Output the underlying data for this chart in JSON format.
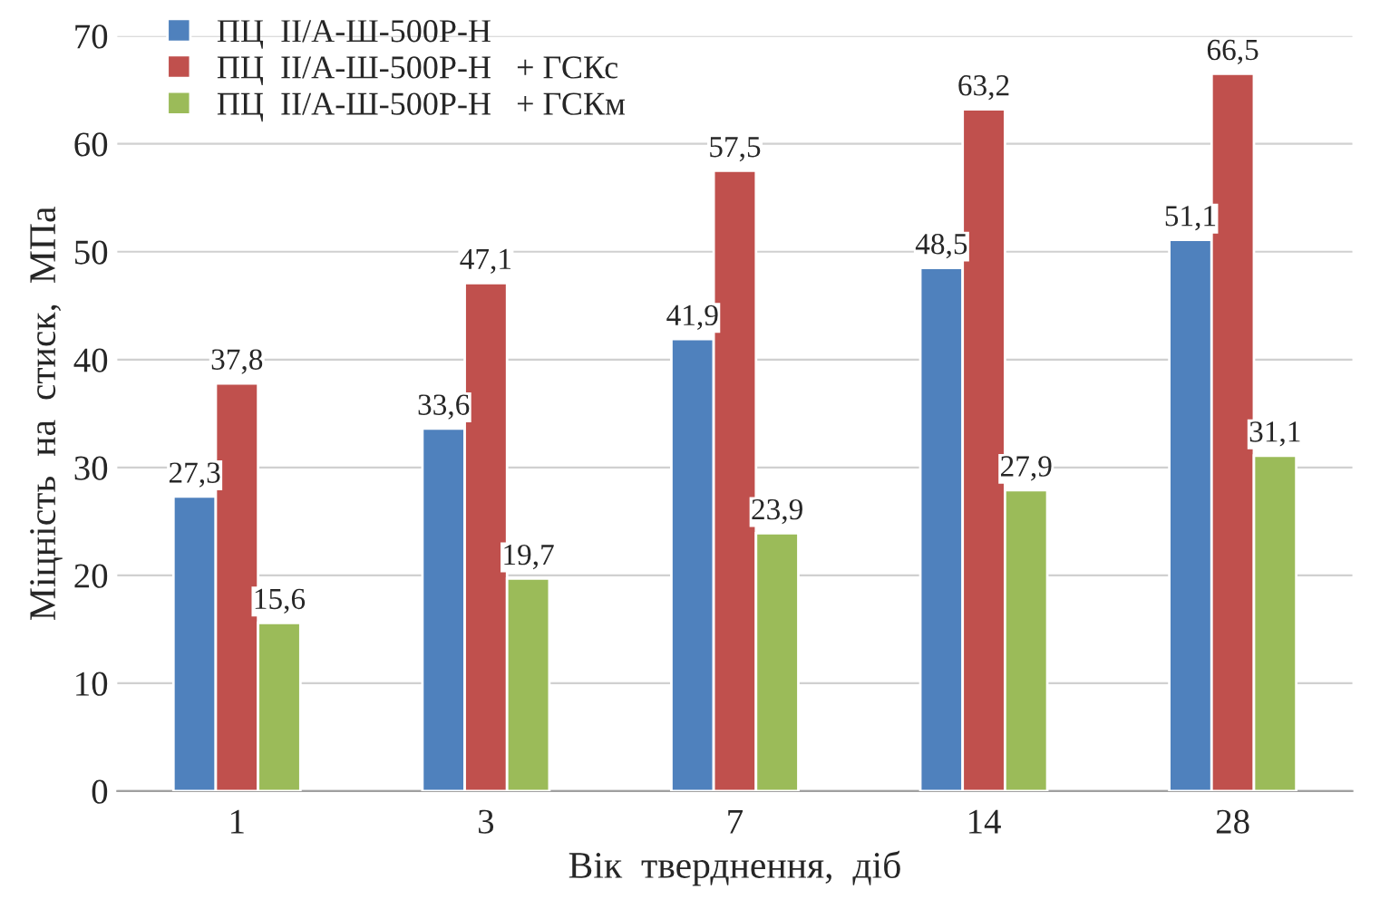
{
  "chart_data": {
    "type": "bar",
    "xlabel": "Вік  тверднення,  діб",
    "ylabel": "Міцність  на  стиск,  МПа",
    "categories": [
      "1",
      "3",
      "7",
      "14",
      "28"
    ],
    "series": [
      {
        "name": "ПЦ  II/А-Ш-500Р-Н",
        "color": "#4f81bd",
        "values": [
          27.3,
          33.6,
          41.9,
          48.5,
          51.1
        ],
        "value_labels": [
          "27,3",
          "33,6",
          "41,9",
          "48,5",
          "51,1"
        ]
      },
      {
        "name": "ПЦ  II/А-Ш-500Р-Н   + ГСКс",
        "color": "#c0504d",
        "values": [
          37.8,
          47.1,
          57.5,
          63.2,
          66.5
        ],
        "value_labels": [
          "37,8",
          "47,1",
          "57,5",
          "63,2",
          "66,5"
        ]
      },
      {
        "name": "ПЦ  II/А-Ш-500Р-Н   + ГСКм",
        "color": "#9bbb59",
        "values": [
          15.6,
          19.7,
          23.9,
          27.9,
          31.1
        ],
        "value_labels": [
          "15,6",
          "19,7",
          "23,9",
          "27,9",
          "31,1"
        ]
      }
    ],
    "ylim": [
      0,
      70
    ],
    "yticks": [
      0,
      10,
      20,
      30,
      40,
      50,
      60,
      70
    ],
    "grid": "y",
    "legend": "top left"
  }
}
